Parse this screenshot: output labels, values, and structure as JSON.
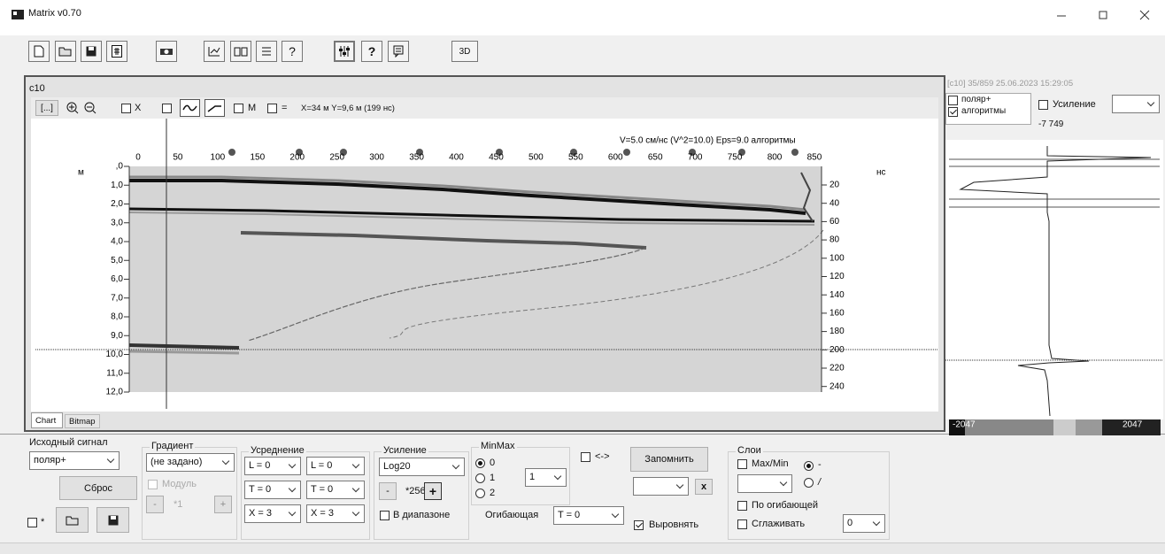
{
  "window": {
    "title": "Matrix v0.70"
  },
  "toolbar": {
    "help_thin": "?",
    "help": "?",
    "button_3d": "3D"
  },
  "panel": {
    "name": "c10",
    "chart_toolbar": {
      "button": "[...]",
      "check_x": "X",
      "check_m": "M",
      "check_eq": "=",
      "cursor": "X=34 м Y=9,6 м (199 нс)"
    },
    "annotation": "V=5.0 см/нс (V^2=10.0)  Eps=9.0  алгоритмы",
    "top_ticks": [
      "0",
      "50",
      "100",
      "150",
      "200",
      "250",
      "300",
      "350",
      "400",
      "450",
      "500",
      "550",
      "600",
      "650",
      "700",
      "750",
      "800",
      "850"
    ],
    "left_unit": "м",
    "left_ticks": [
      ",0",
      "1,0",
      "2,0",
      "3,0",
      "4,0",
      "5,0",
      "6,0",
      "7,0",
      "8,0",
      "9,0",
      "10,0",
      "11,0",
      "12,0"
    ],
    "right_unit": "нс",
    "right_ticks": [
      "20",
      "40",
      "60",
      "80",
      "100",
      "120",
      "140",
      "160",
      "180",
      "200",
      "220",
      "240"
    ],
    "tabs": [
      "Chart",
      "Bitmap"
    ]
  },
  "side_panel": {
    "header": "[c10] 35/859 25.06.2023 15:29:05",
    "check_polar": "поляр+",
    "check_alg": "алгоритмы",
    "check_gain": "Усиление",
    "gain_value": "-7 749",
    "scale_min": "-2047",
    "scale_max": "2047"
  },
  "controls": {
    "source": {
      "label": "Исходный сигнал",
      "select": "поляр+",
      "reset": "Сброс",
      "check": "*"
    },
    "gradient": {
      "label": "Градиент",
      "select": "(не задано)",
      "module": "Модуль",
      "minus": "-",
      "factor": "*1",
      "plus": "+"
    },
    "averaging": {
      "label": "Усреднение",
      "l1": "L = 0",
      "l2": "L = 0",
      "t1": "T = 0",
      "t2": "T = 0",
      "x1": "X = 3",
      "x2": "X = 3"
    },
    "gain": {
      "label": "Усиление",
      "select": "Log20",
      "minus": "-",
      "factor": "*256",
      "plus": "+",
      "range": "В диапазоне"
    },
    "minmax": {
      "label": "MinMax",
      "r0": "0",
      "r1": "1",
      "r2": "2",
      "select": "1"
    },
    "swap": "<->",
    "remember": "Запомнить",
    "clear": "x",
    "envelope": {
      "label": "Огибающая",
      "select": "T = 0"
    },
    "align": "Выровнять",
    "layers": {
      "label": "Слои",
      "maxmin": "Max/Min",
      "r_dash": "-",
      "r_slash": "/",
      "by_envelope": "По огибающей",
      "smooth": "Сглаживать",
      "smooth_select": "0"
    }
  }
}
